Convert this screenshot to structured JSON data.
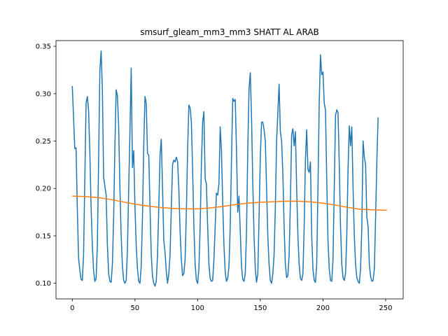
{
  "chart_data": {
    "type": "line",
    "title": "smsurf_gleam_mm3_mm3 SHATT AL ARAB",
    "xlabel": "",
    "ylabel": "",
    "xlim": [
      -13,
      264
    ],
    "ylim": [
      0.0835,
      0.356
    ],
    "xticks": [
      0,
      50,
      100,
      150,
      200,
      250
    ],
    "xtick_labels": [
      "0",
      "50",
      "100",
      "150",
      "200",
      "250"
    ],
    "yticks": [
      0.1,
      0.15,
      0.2,
      0.25,
      0.3,
      0.35
    ],
    "ytick_labels": [
      "0.10",
      "0.15",
      "0.20",
      "0.25",
      "0.30",
      "0.35"
    ],
    "grid": false,
    "series_style": [
      {
        "color": "#1f77b4"
      },
      {
        "color": "#ff7f0e"
      }
    ],
    "series": [
      {
        "points": [
          [
            0,
            0.308
          ],
          [
            2,
            0.242
          ],
          [
            3,
            0.243
          ],
          [
            4,
            0.18
          ],
          [
            5,
            0.127
          ],
          [
            6,
            0.114
          ],
          [
            7,
            0.104
          ],
          [
            8,
            0.103
          ],
          [
            9,
            0.13
          ],
          [
            10,
            0.21
          ],
          [
            11,
            0.29
          ],
          [
            12,
            0.297
          ],
          [
            13,
            0.282
          ],
          [
            14,
            0.238
          ],
          [
            15,
            0.18
          ],
          [
            16,
            0.14
          ],
          [
            17,
            0.113
          ],
          [
            18,
            0.102
          ],
          [
            19,
            0.105
          ],
          [
            20,
            0.14
          ],
          [
            21,
            0.23
          ],
          [
            22,
            0.325
          ],
          [
            23,
            0.345
          ],
          [
            24,
            0.305
          ],
          [
            25,
            0.212
          ],
          [
            27,
            0.193
          ],
          [
            28,
            0.14
          ],
          [
            29,
            0.11
          ],
          [
            30,
            0.102
          ],
          [
            31,
            0.101
          ],
          [
            32,
            0.12
          ],
          [
            33,
            0.17
          ],
          [
            34,
            0.245
          ],
          [
            35,
            0.304
          ],
          [
            36,
            0.298
          ],
          [
            37,
            0.265
          ],
          [
            38,
            0.2
          ],
          [
            39,
            0.15
          ],
          [
            40,
            0.118
          ],
          [
            41,
            0.103
          ],
          [
            42,
            0.1
          ],
          [
            43,
            0.103
          ],
          [
            44,
            0.135
          ],
          [
            45,
            0.2
          ],
          [
            46,
            0.26
          ],
          [
            47,
            0.327
          ],
          [
            48,
            0.222
          ],
          [
            49,
            0.24
          ],
          [
            50,
            0.18
          ],
          [
            51,
            0.14
          ],
          [
            52,
            0.115
          ],
          [
            53,
            0.102
          ],
          [
            54,
            0.1
          ],
          [
            55,
            0.118
          ],
          [
            56,
            0.17
          ],
          [
            57,
            0.245
          ],
          [
            58,
            0.297
          ],
          [
            59,
            0.29
          ],
          [
            60,
            0.237
          ],
          [
            61,
            0.235
          ],
          [
            62,
            0.18
          ],
          [
            63,
            0.13
          ],
          [
            64,
            0.107
          ],
          [
            65,
            0.1
          ],
          [
            66,
            0.097
          ],
          [
            67,
            0.102
          ],
          [
            68,
            0.13
          ],
          [
            69,
            0.18
          ],
          [
            70,
            0.235
          ],
          [
            71,
            0.252
          ],
          [
            72,
            0.2
          ],
          [
            73,
            0.145
          ],
          [
            74,
            0.133
          ],
          [
            75,
            0.112
          ],
          [
            76,
            0.1
          ],
          [
            77,
            0.11
          ],
          [
            78,
            0.13
          ],
          [
            79,
            0.18
          ],
          [
            80,
            0.225
          ],
          [
            81,
            0.23
          ],
          [
            82,
            0.228
          ],
          [
            83,
            0.233
          ],
          [
            84,
            0.228
          ],
          [
            85,
            0.2
          ],
          [
            86,
            0.155
          ],
          [
            87,
            0.125
          ],
          [
            88,
            0.108
          ],
          [
            89,
            0.11
          ],
          [
            90,
            0.125
          ],
          [
            91,
            0.175
          ],
          [
            92,
            0.24
          ],
          [
            93,
            0.288
          ],
          [
            94,
            0.285
          ],
          [
            95,
            0.27
          ],
          [
            96,
            0.22
          ],
          [
            97,
            0.16
          ],
          [
            98,
            0.12
          ],
          [
            99,
            0.103
          ],
          [
            100,
            0.1
          ],
          [
            101,
            0.115
          ],
          [
            102,
            0.16
          ],
          [
            103,
            0.225
          ],
          [
            104,
            0.27
          ],
          [
            105,
            0.281
          ],
          [
            106,
            0.21
          ],
          [
            107,
            0.205
          ],
          [
            108,
            0.16
          ],
          [
            109,
            0.12
          ],
          [
            110,
            0.105
          ],
          [
            111,
            0.102
          ],
          [
            112,
            0.103
          ],
          [
            113,
            0.125
          ],
          [
            114,
            0.16
          ],
          [
            115,
            0.195
          ],
          [
            116,
            0.193
          ],
          [
            117,
            0.205
          ],
          [
            118,
            0.265
          ],
          [
            119,
            0.24
          ],
          [
            120,
            0.185
          ],
          [
            121,
            0.14
          ],
          [
            122,
            0.112
          ],
          [
            123,
            0.102
          ],
          [
            124,
            0.105
          ],
          [
            125,
            0.118
          ],
          [
            126,
            0.16
          ],
          [
            127,
            0.23
          ],
          [
            128,
            0.295
          ],
          [
            129,
            0.292
          ],
          [
            130,
            0.294
          ],
          [
            131,
            0.24
          ],
          [
            132,
            0.175
          ],
          [
            133,
            0.192
          ],
          [
            134,
            0.155
          ],
          [
            135,
            0.118
          ],
          [
            136,
            0.104
          ],
          [
            137,
            0.102
          ],
          [
            138,
            0.11
          ],
          [
            139,
            0.155
          ],
          [
            140,
            0.24
          ],
          [
            141,
            0.305
          ],
          [
            142,
            0.322
          ],
          [
            143,
            0.275
          ],
          [
            144,
            0.205
          ],
          [
            145,
            0.15
          ],
          [
            146,
            0.115
          ],
          [
            147,
            0.101
          ],
          [
            148,
            0.11
          ],
          [
            149,
            0.17
          ],
          [
            150,
            0.233
          ],
          [
            151,
            0.27
          ],
          [
            152,
            0.27
          ],
          [
            153,
            0.262
          ],
          [
            154,
            0.25
          ],
          [
            155,
            0.2
          ],
          [
            156,
            0.15
          ],
          [
            157,
            0.12
          ],
          [
            158,
            0.103
          ],
          [
            159,
            0.1
          ],
          [
            160,
            0.11
          ],
          [
            161,
            0.13
          ],
          [
            162,
            0.18
          ],
          [
            163,
            0.25
          ],
          [
            164,
            0.28
          ],
          [
            165,
            0.31
          ],
          [
            166,
            0.26
          ],
          [
            167,
            0.25
          ],
          [
            168,
            0.215
          ],
          [
            169,
            0.16
          ],
          [
            170,
            0.12
          ],
          [
            171,
            0.106
          ],
          [
            172,
            0.108
          ],
          [
            173,
            0.13
          ],
          [
            174,
            0.185
          ],
          [
            175,
            0.257
          ],
          [
            176,
            0.263
          ],
          [
            177,
            0.245
          ],
          [
            178,
            0.26
          ],
          [
            179,
            0.2
          ],
          [
            180,
            0.15
          ],
          [
            181,
            0.12
          ],
          [
            182,
            0.105
          ],
          [
            183,
            0.103
          ],
          [
            184,
            0.11
          ],
          [
            185,
            0.16
          ],
          [
            186,
            0.23
          ],
          [
            187,
            0.262
          ],
          [
            188,
            0.22
          ],
          [
            189,
            0.217
          ],
          [
            190,
            0.228
          ],
          [
            191,
            0.15
          ],
          [
            192,
            0.115
          ],
          [
            193,
            0.103
          ],
          [
            194,
            0.101
          ],
          [
            195,
            0.12
          ],
          [
            196,
            0.2
          ],
          [
            197,
            0.29
          ],
          [
            198,
            0.341
          ],
          [
            199,
            0.32
          ],
          [
            200,
            0.323
          ],
          [
            201,
            0.29
          ],
          [
            202,
            0.283
          ],
          [
            203,
            0.21
          ],
          [
            204,
            0.145
          ],
          [
            205,
            0.115
          ],
          [
            206,
            0.103
          ],
          [
            207,
            0.102
          ],
          [
            208,
            0.125
          ],
          [
            209,
            0.2
          ],
          [
            210,
            0.277
          ],
          [
            211,
            0.283
          ],
          [
            212,
            0.28
          ],
          [
            213,
            0.225
          ],
          [
            214,
            0.16
          ],
          [
            215,
            0.12
          ],
          [
            216,
            0.106
          ],
          [
            217,
            0.103
          ],
          [
            218,
            0.11
          ],
          [
            219,
            0.15
          ],
          [
            220,
            0.22
          ],
          [
            221,
            0.266
          ],
          [
            222,
            0.245
          ],
          [
            223,
            0.265
          ],
          [
            224,
            0.2
          ],
          [
            225,
            0.15
          ],
          [
            226,
            0.12
          ],
          [
            227,
            0.106
          ],
          [
            228,
            0.102
          ],
          [
            229,
            0.1
          ],
          [
            230,
            0.115
          ],
          [
            231,
            0.16
          ],
          [
            232,
            0.25
          ],
          [
            233,
            0.233
          ],
          [
            234,
            0.225
          ],
          [
            235,
            0.17
          ],
          [
            236,
            0.16
          ],
          [
            237,
            0.12
          ],
          [
            238,
            0.107
          ],
          [
            239,
            0.102
          ],
          [
            240,
            0.103
          ],
          [
            241,
            0.115
          ],
          [
            242,
            0.17
          ],
          [
            243,
            0.23
          ],
          [
            244,
            0.275
          ]
        ]
      },
      {
        "points": [
          [
            0,
            0.192
          ],
          [
            10,
            0.1915
          ],
          [
            20,
            0.1905
          ],
          [
            30,
            0.1885
          ],
          [
            40,
            0.186
          ],
          [
            50,
            0.1835
          ],
          [
            60,
            0.1815
          ],
          [
            70,
            0.18
          ],
          [
            80,
            0.179
          ],
          [
            90,
            0.1785
          ],
          [
            100,
            0.1785
          ],
          [
            110,
            0.1795
          ],
          [
            120,
            0.181
          ],
          [
            130,
            0.183
          ],
          [
            140,
            0.1845
          ],
          [
            150,
            0.1855
          ],
          [
            160,
            0.186
          ],
          [
            170,
            0.1865
          ],
          [
            180,
            0.1865
          ],
          [
            190,
            0.186
          ],
          [
            200,
            0.1845
          ],
          [
            210,
            0.1825
          ],
          [
            220,
            0.18
          ],
          [
            230,
            0.178
          ],
          [
            240,
            0.1775
          ],
          [
            251,
            0.177
          ]
        ]
      }
    ]
  }
}
